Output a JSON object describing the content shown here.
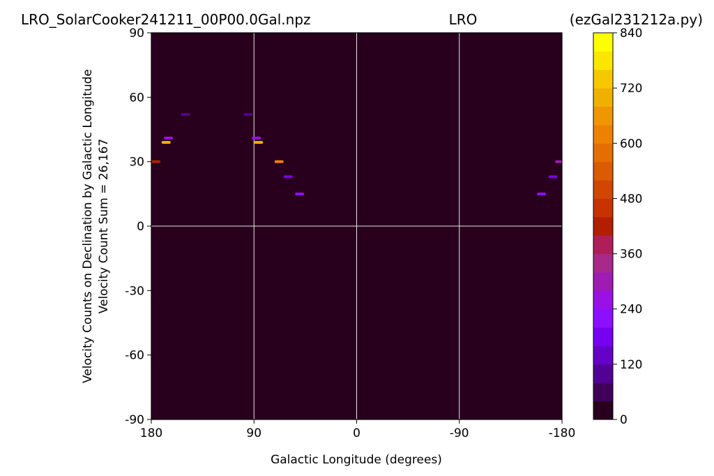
{
  "chart_data": {
    "type": "heatmap",
    "title": {
      "left": "LRO_SolarCooker241211_00P00.0Gal.npz",
      "center": "LRO",
      "right": "(ezGal231212a.py)"
    },
    "xlabel": "Galactic Longitude (degrees)",
    "ylabel_line1": "Velocity Counts on Declination by Galactic Longitude",
    "ylabel_line2": "Velocity Count Sum = 26,167",
    "x_ticks": [
      {
        "value": 180,
        "label": "180"
      },
      {
        "value": 90,
        "label": "90"
      },
      {
        "value": 0,
        "label": "0"
      },
      {
        "value": -90,
        "label": "-90"
      },
      {
        "value": -180,
        "label": "-180"
      }
    ],
    "y_ticks": [
      {
        "value": 90,
        "label": "90"
      },
      {
        "value": 60,
        "label": "60"
      },
      {
        "value": 30,
        "label": "30"
      },
      {
        "value": 0,
        "label": "0"
      },
      {
        "value": -30,
        "label": "-30"
      },
      {
        "value": -60,
        "label": "-60"
      },
      {
        "value": -90,
        "label": "-90"
      }
    ],
    "xlim": [
      180,
      -180
    ],
    "ylim": [
      -90,
      90
    ],
    "grid": true,
    "grid_lines_x": [
      90,
      0,
      -90
    ],
    "grid_lines_y": [
      0
    ],
    "colorbar": {
      "min": 0,
      "max": 840,
      "ticks": [
        0,
        120,
        240,
        360,
        480,
        600,
        720,
        840
      ],
      "tick_labels": [
        "0",
        "120",
        "240",
        "360",
        "480",
        "600",
        "720",
        "840"
      ],
      "colors": [
        "#28001e",
        "#40005a",
        "#520096",
        "#6400c8",
        "#7800f0",
        "#8c10ff",
        "#9a10e6",
        "#a01ab4",
        "#a8288c",
        "#b01e5a",
        "#b41e00",
        "#c83200",
        "#d24600",
        "#dc5a00",
        "#e66e00",
        "#ee8200",
        "#f09600",
        "#f0b000",
        "#f5c800",
        "#fae600",
        "#ffff00"
      ]
    },
    "background_color": "#28001e",
    "points": [
      {
        "lon": 178,
        "lat": 30,
        "value": 420
      },
      {
        "lon": 167,
        "lat": 39,
        "value": 700
      },
      {
        "lon": 165,
        "lat": 41,
        "value": 240
      },
      {
        "lon": 150,
        "lat": 52,
        "value": 90
      },
      {
        "lon": 95,
        "lat": 52,
        "value": 90
      },
      {
        "lon": 88,
        "lat": 41,
        "value": 240
      },
      {
        "lon": 86,
        "lat": 39,
        "value": 700
      },
      {
        "lon": 68,
        "lat": 30,
        "value": 620
      },
      {
        "lon": 60,
        "lat": 23,
        "value": 180
      },
      {
        "lon": 50,
        "lat": 15,
        "value": 200
      },
      {
        "lon": -162,
        "lat": 15,
        "value": 200
      },
      {
        "lon": -172,
        "lat": 23,
        "value": 180
      },
      {
        "lon": -178,
        "lat": 30,
        "value": 300
      }
    ]
  }
}
